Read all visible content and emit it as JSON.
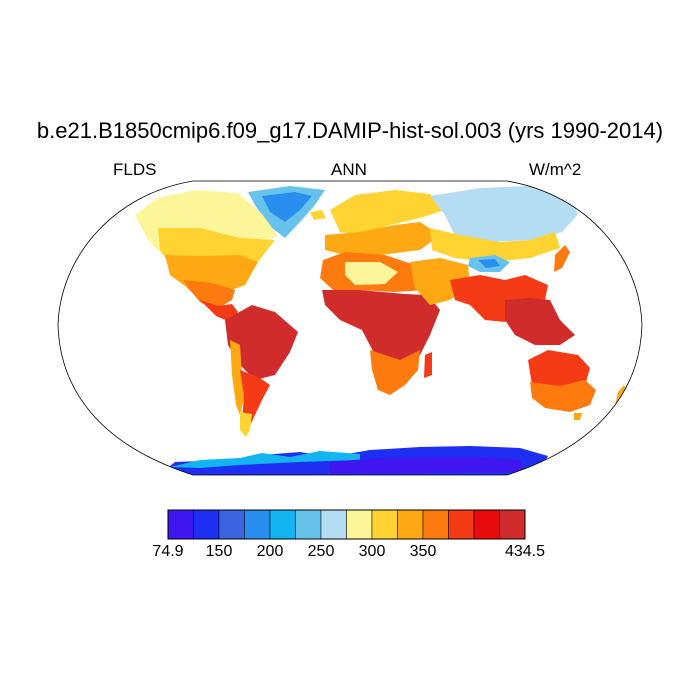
{
  "title": "b.e21.B1850cmip6.f09_g17.DAMIP-hist-sol.003 (yrs 1990-2014)",
  "left_label": "FLDS",
  "center_label": "ANN",
  "right_label": "W/m^2",
  "colorbar": {
    "colors": [
      "#4016f0",
      "#1e2ef2",
      "#3b64e0",
      "#2a8ef0",
      "#12b4f2",
      "#68c3ec",
      "#b4dcf2",
      "#fdf59a",
      "#fed332",
      "#fea814",
      "#fc7a0e",
      "#f53a16",
      "#e80c0c",
      "#d02c2c"
    ],
    "labels": [
      {
        "text": "74.9",
        "boundary": 0
      },
      {
        "text": "150",
        "boundary": 2
      },
      {
        "text": "200",
        "boundary": 4
      },
      {
        "text": "250",
        "boundary": 6
      },
      {
        "text": "300",
        "boundary": 8
      },
      {
        "text": "350",
        "boundary": 10
      },
      {
        "text": "434.5",
        "boundary": 14
      }
    ]
  }
}
